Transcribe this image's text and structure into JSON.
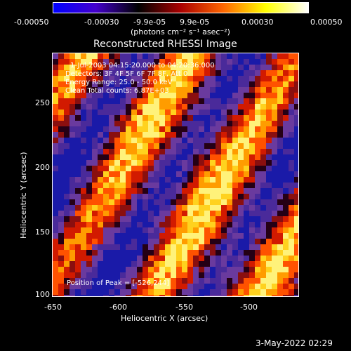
{
  "colorbar": {
    "ticks": [
      "-0.00050",
      "-0.00030",
      "-9.9e-05",
      "9.9e-05",
      "0.00030",
      "0.00050"
    ],
    "unit_label": "(photons cm⁻² s⁻¹ asec⁻²)",
    "colors": [
      "#0000ff",
      "#4400cc",
      "#000000",
      "#aa0000",
      "#ff6600",
      "#ffff00",
      "#ffffff"
    ]
  },
  "title": "Reconstructed RHESSI Image",
  "annotations": {
    "time": "1-Jul-2003 04:15:20.000 to 04:20:36.000",
    "detectors": "Detectors: 3F 4F 5F 6F 7F 8F, Att 0",
    "energy": "Energy Range: 25.0 - 50.0 keV",
    "clean": "Clean    Total counts: 6.87E+03",
    "peak": "Position of Peak = [-526,244]"
  },
  "axes": {
    "x_label": "Heliocentric X (arcsec)",
    "y_label": "Heliocentric Y (arcsec)",
    "x_ticks": [
      "-650",
      "-600",
      "-550",
      "-500"
    ],
    "y_ticks": [
      "250",
      "200",
      "150",
      "100"
    ],
    "x_range": [
      -653,
      -468
    ],
    "y_range": [
      98,
      280
    ]
  },
  "footer_date": "3-May-2022 02:29"
}
